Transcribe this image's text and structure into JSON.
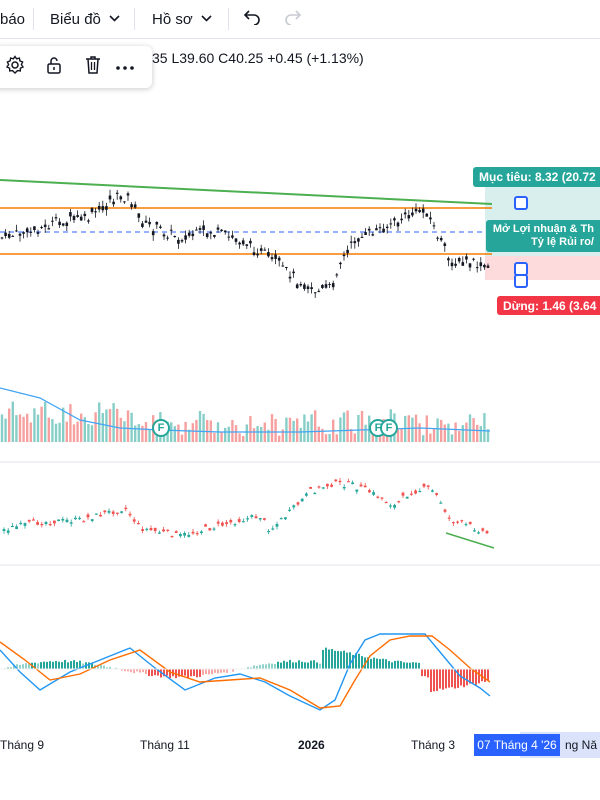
{
  "toolbar": {
    "partial_item": "báo",
    "chart_menu": "Biểu đồ",
    "profile_menu": "Hồ sơ"
  },
  "ohlc": {
    "text": "35  L39.60  C40.25  +0.45 (+1.13%)"
  },
  "position_tool": {
    "target_label": "Mục tiêu: 8.32 (20.72",
    "info_line1": "Mở Lợi nhuận & Th",
    "info_line2": "Tỷ lệ Rủi ro/",
    "stop_label": "Dừng: 1.46 (3.64",
    "target_color": "#26a69a",
    "stop_color": "#f23645"
  },
  "events": {
    "marker1": "F",
    "marker2": "F",
    "marker3": "F"
  },
  "xaxis": {
    "labels": [
      "Tháng 9",
      "Tháng 11",
      "2026",
      "Tháng 3"
    ],
    "current": "07 Tháng 4 '26",
    "partial": "ng Nă"
  },
  "colors": {
    "up": "#26a69a",
    "down": "#ef5350",
    "trend": "#4caf50",
    "orange": "#f57c00",
    "blue": "#2962ff"
  }
}
